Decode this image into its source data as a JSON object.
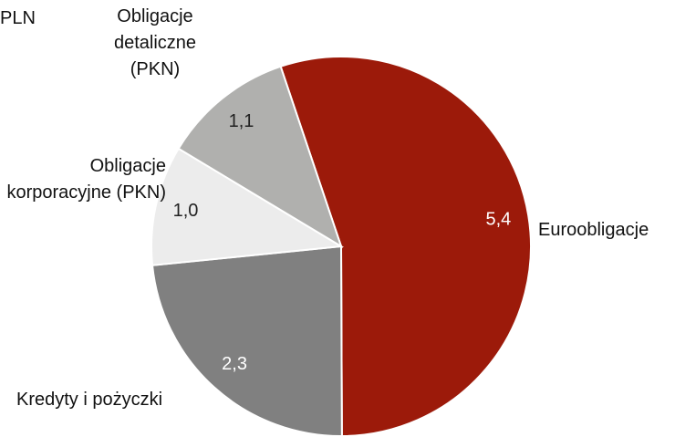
{
  "chart_data": {
    "type": "pie",
    "title": "PLN",
    "categories": [
      "Euroobligacje",
      "Kredyty i pożyczki",
      "Obligacje korporacyjne (PKN)",
      "Obligacje detaliczne (PKN)"
    ],
    "values": [
      5.4,
      2.3,
      1.0,
      1.1
    ],
    "value_labels": [
      "5,4",
      "2,3",
      "1,0",
      "1,1"
    ],
    "colors": [
      "#9c1a0a",
      "#808080",
      "#ececec",
      "#b0b0ae"
    ]
  }
}
